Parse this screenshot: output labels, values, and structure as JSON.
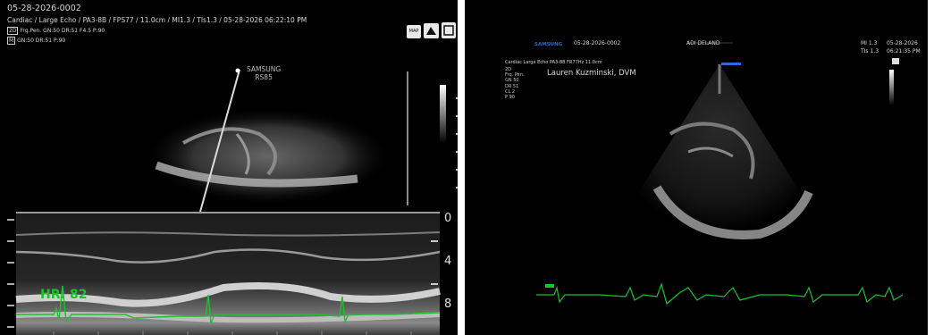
{
  "left": {
    "date_line": "05-28-2026-0002",
    "header_line": "Cardiac / Large Echo / PA3-8B / FPS77 / 11.0cm / MI1.3 / TIs1.3 / 05-28-2026 06:22:10 PM",
    "mode_2d_tag": "2D",
    "mode_2d_params": "Frq.Pen. GN:50 DR:51 F4.5 P:90",
    "mode_m_tag": "M",
    "mode_m_params": "GN:50 DR:51 P:90",
    "watermark_line1": "SAMSUNG",
    "watermark_line2": "RS85",
    "depth_labels": [
      "0",
      "4",
      "8"
    ],
    "heart_rate": "HR: 82",
    "icons": [
      "map-icon",
      "probe-icon",
      "frame-icon"
    ],
    "colors": {
      "ecg": "#19c42a",
      "text": "#d8d8d8",
      "background": "#000000"
    }
  },
  "right": {
    "brand": "SAMSUNG",
    "patient_id": "05-28-2026-0002",
    "clinic": "ADI DELAND",
    "ti_row1": "MI 1.3",
    "ti_row2": "TIs 1.3",
    "date_row1": "05-28-2026",
    "date_row2": "06:21:35 PM",
    "preset_line": "Cardiac  Large Echo  PA3-8B  FR77Hz  11.0cm",
    "operator": "Lauren Kuzminski, DVM",
    "params": [
      "2D",
      "Frq. Pen.",
      "GN  50",
      "DR  51",
      "CL  2",
      "P   90"
    ],
    "colors": {
      "brand": "#2b6ad8",
      "ecg": "#19c42a"
    }
  }
}
